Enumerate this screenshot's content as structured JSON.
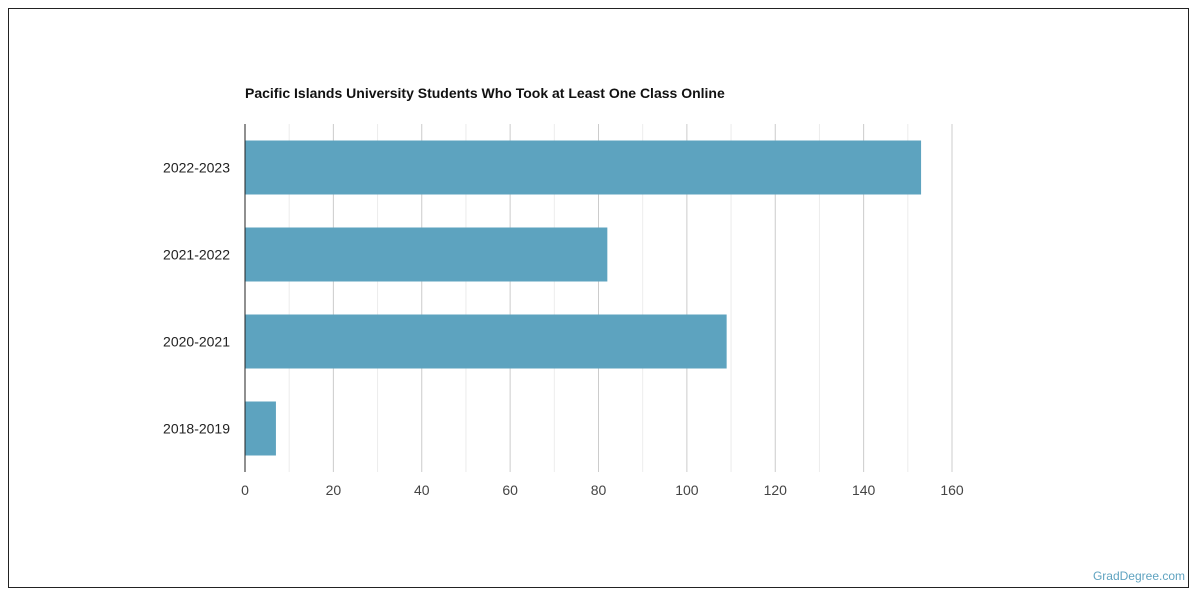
{
  "chart_data": {
    "type": "bar",
    "orientation": "horizontal",
    "title": "Pacific Islands University Students Who Took at Least One Class Online",
    "categories": [
      "2022-2023",
      "2021-2022",
      "2020-2021",
      "2018-2019"
    ],
    "values": [
      153,
      82,
      109,
      7
    ],
    "xlabel": "",
    "ylabel": "",
    "xlim": [
      0,
      160
    ],
    "xticks": [
      0,
      20,
      40,
      60,
      80,
      100,
      120,
      140,
      160
    ],
    "grid": true,
    "bar_color": "#5da3bf"
  },
  "watermark": "GradDegree.com"
}
